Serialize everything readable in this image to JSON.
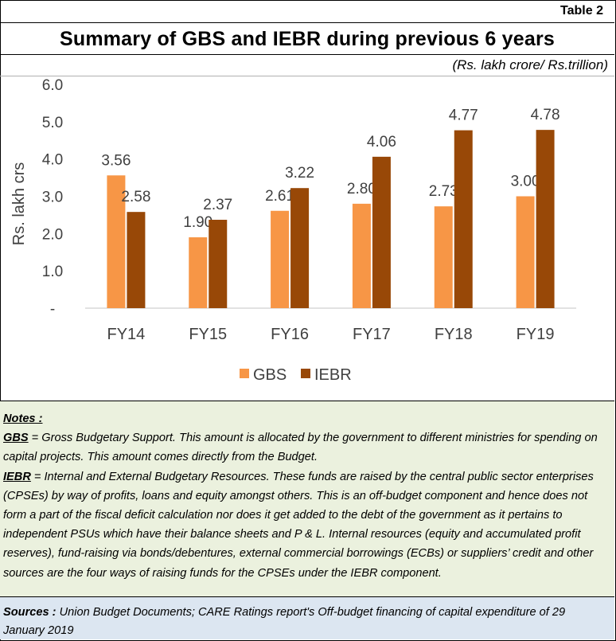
{
  "table_tag": "Table 2",
  "title": "Summary of GBS and IEBR during previous 6 years",
  "unit_note": "(Rs. lakh crore/ Rs.trillion)",
  "colors": {
    "gbs": "#f79646",
    "iebr": "#984807",
    "notes_bg": "#ebf1de",
    "sources_bg": "#dce6f1"
  },
  "chart_data": {
    "type": "bar",
    "title": "",
    "xlabel": "",
    "ylabel": "Rs. lakh crs",
    "categories": [
      "FY14",
      "FY15",
      "FY16",
      "FY17",
      "FY18",
      "FY19"
    ],
    "series": [
      {
        "name": "GBS",
        "values": [
          3.56,
          1.9,
          2.61,
          2.8,
          2.73,
          3.0
        ],
        "labels": [
          "3.56",
          "1.90",
          "2.61",
          "2.80",
          "2.73",
          "3.00"
        ],
        "color": "#f79646"
      },
      {
        "name": "IEBR",
        "values": [
          2.58,
          2.37,
          3.22,
          4.06,
          4.77,
          4.78
        ],
        "labels": [
          "2.58",
          "2.37",
          "3.22",
          "4.06",
          "4.77",
          "4.78"
        ],
        "color": "#984807"
      }
    ],
    "ylim": [
      0,
      6
    ],
    "yticks": [
      {
        "value": 0,
        "label": "-"
      },
      {
        "value": 1,
        "label": "1.0"
      },
      {
        "value": 2,
        "label": "2.0"
      },
      {
        "value": 3,
        "label": "3.0"
      },
      {
        "value": 4,
        "label": "4.0"
      },
      {
        "value": 5,
        "label": "5.0"
      },
      {
        "value": 6,
        "label": "6.0"
      }
    ],
    "grid": false,
    "legend_position": "bottom"
  },
  "notes": {
    "heading": "Notes :",
    "gbs_term": "GBS",
    "gbs_text": " = Gross Budgetary Support.  This amount is allocated by the government to different ministries for spending on capital projects. This amount comes directly from the Budget.",
    "iebr_term": "IEBR",
    "iebr_text": " = Internal and External Budgetary Resources.  These funds are raised by the central public sector enterprises (CPSEs) by way of profits, loans and equity amongst others. This is an off-budget component and hence does not form a part of the fiscal deficit calculation nor does it get added to the debt of the government as it pertains to independent PSUs which have their balance sheets and P & L.   Internal resources (equity and accumulated profit reserves), fund-raising via bonds/debentures, external commercial borrowings (ECBs) or suppliers’ credit and other sources are the four ways of raising funds for the CPSEs under the IEBR component."
  },
  "sources": {
    "label": "Sources :",
    "text": " Union Budget Documents; CARE Ratings report's Off-budget financing of capital expenditure of 29 January 2019"
  }
}
